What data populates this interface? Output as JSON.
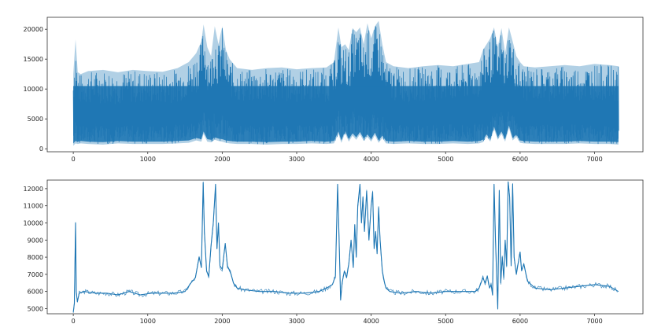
{
  "chart_data": [
    {
      "type": "line",
      "title": "",
      "xlabel": "",
      "ylabel": "",
      "xlim": [
        -350,
        7650
      ],
      "ylim": [
        -500,
        22000
      ],
      "xticks": [
        0,
        1000,
        2000,
        3000,
        4000,
        5000,
        6000,
        7000
      ],
      "yticks": [
        0,
        5000,
        10000,
        15000,
        20000
      ],
      "grid": false,
      "color": "#1f77b4",
      "series": [
        {
          "name": "",
          "band_style": "dense oscillating signal; envelope values listed below",
          "x": [
            0,
            30,
            60,
            100,
            200,
            400,
            600,
            800,
            1000,
            1200,
            1400,
            1550,
            1650,
            1720,
            1750,
            1800,
            1850,
            1900,
            1950,
            2000,
            2050,
            2100,
            2200,
            2400,
            2600,
            2800,
            3000,
            3200,
            3400,
            3500,
            3560,
            3600,
            3650,
            3700,
            3750,
            3800,
            3850,
            3900,
            3950,
            4000,
            4050,
            4100,
            4150,
            4200,
            4300,
            4500,
            4700,
            4900,
            5100,
            5300,
            5450,
            5500,
            5550,
            5600,
            5650,
            5700,
            5750,
            5800,
            5850,
            5900,
            5950,
            6000,
            6050,
            6200,
            6400,
            6600,
            6800,
            7000,
            7200,
            7320
          ],
          "upper": [
            12500,
            18300,
            12800,
            12500,
            13000,
            13200,
            12800,
            13200,
            13000,
            12900,
            13500,
            14500,
            16000,
            18000,
            20800,
            17000,
            15500,
            20500,
            17500,
            20500,
            16500,
            15000,
            13500,
            13200,
            13500,
            13600,
            13300,
            13500,
            13600,
            14500,
            20300,
            17000,
            17500,
            16500,
            20200,
            19500,
            20300,
            17500,
            21000,
            18500,
            20500,
            21400,
            17500,
            14500,
            13800,
            13500,
            13800,
            14000,
            13800,
            14200,
            14500,
            16500,
            17500,
            18500,
            20300,
            17000,
            20200,
            16000,
            20300,
            18000,
            15500,
            14500,
            13800,
            13600,
            13800,
            14000,
            13800,
            14200,
            14000,
            13800
          ],
          "lower": [
            500,
            900,
            800,
            900,
            800,
            700,
            900,
            800,
            800,
            800,
            900,
            1000,
            1400,
            1200,
            2500,
            1200,
            1100,
            1500,
            1300,
            1200,
            1000,
            900,
            800,
            800,
            700,
            800,
            800,
            900,
            800,
            900,
            2500,
            1000,
            2600,
            1200,
            2200,
            1500,
            2400,
            1300,
            2000,
            1200,
            2300,
            1000,
            1800,
            900,
            800,
            900,
            800,
            800,
            900,
            800,
            900,
            1100,
            2000,
            1200,
            3300,
            1500,
            2500,
            1200,
            3500,
            1400,
            2000,
            1000,
            900,
            800,
            800,
            800,
            900,
            800,
            800,
            700
          ]
        }
      ]
    },
    {
      "type": "line",
      "title": "",
      "xlabel": "",
      "ylabel": "",
      "xlim": [
        -350,
        7650
      ],
      "ylim": [
        4700,
        12500
      ],
      "xticks": [
        0,
        1000,
        2000,
        3000,
        4000,
        5000,
        6000,
        7000
      ],
      "yticks": [
        5000,
        6000,
        7000,
        8000,
        9000,
        10000,
        11000,
        12000
      ],
      "grid": false,
      "color": "#1f77b4",
      "series": [
        {
          "name": "",
          "x": [
            0,
            15,
            30,
            40,
            55,
            80,
            150,
            300,
            450,
            600,
            750,
            900,
            1050,
            1200,
            1350,
            1500,
            1580,
            1640,
            1690,
            1720,
            1745,
            1760,
            1790,
            1820,
            1850,
            1880,
            1910,
            1930,
            1950,
            1970,
            2000,
            2040,
            2070,
            2100,
            2120,
            2150,
            2200,
            2300,
            2500,
            2700,
            2900,
            3100,
            3300,
            3400,
            3480,
            3520,
            3550,
            3570,
            3590,
            3610,
            3640,
            3670,
            3700,
            3730,
            3760,
            3780,
            3800,
            3820,
            3850,
            3870,
            3890,
            3910,
            3940,
            3970,
            4000,
            4020,
            4040,
            4060,
            4080,
            4100,
            4120,
            4150,
            4180,
            4200,
            4250,
            4400,
            4600,
            4800,
            5000,
            5200,
            5400,
            5450,
            5500,
            5530,
            5560,
            5590,
            5610,
            5630,
            5650,
            5670,
            5700,
            5720,
            5740,
            5760,
            5780,
            5800,
            5820,
            5840,
            5860,
            5880,
            5900,
            5920,
            5950,
            5980,
            6000,
            6020,
            6050,
            6100,
            6200,
            6400,
            6600,
            6800,
            7000,
            7200,
            7320
          ],
          "values": [
            4800,
            5300,
            10000,
            6000,
            5400,
            5900,
            6000,
            5900,
            5900,
            5800,
            6000,
            5800,
            5900,
            5900,
            5900,
            6000,
            6500,
            6800,
            8000,
            7400,
            12350,
            9500,
            7200,
            6900,
            8700,
            10000,
            12250,
            8500,
            10000,
            7500,
            7300,
            8800,
            7500,
            7200,
            7000,
            6500,
            6200,
            6100,
            6000,
            6000,
            5900,
            5900,
            6000,
            6200,
            6400,
            6900,
            12250,
            9000,
            5500,
            6500,
            7200,
            6800,
            7600,
            9000,
            7400,
            9900,
            8000,
            11000,
            12250,
            10000,
            11500,
            9500,
            11850,
            9000,
            11000,
            11800,
            8500,
            9500,
            8200,
            10900,
            9000,
            7200,
            6500,
            6200,
            6000,
            5900,
            6000,
            5900,
            6000,
            6000,
            6000,
            6200,
            6800,
            6500,
            6900,
            6200,
            6400,
            5800,
            12250,
            9000,
            5000,
            11900,
            6500,
            8000,
            6800,
            9000,
            7500,
            12400,
            11500,
            7500,
            12250,
            8000,
            7000,
            7800,
            8300,
            7200,
            7600,
            6600,
            6200,
            6100,
            6200,
            6300,
            6400,
            6300,
            6000
          ]
        }
      ]
    }
  ]
}
